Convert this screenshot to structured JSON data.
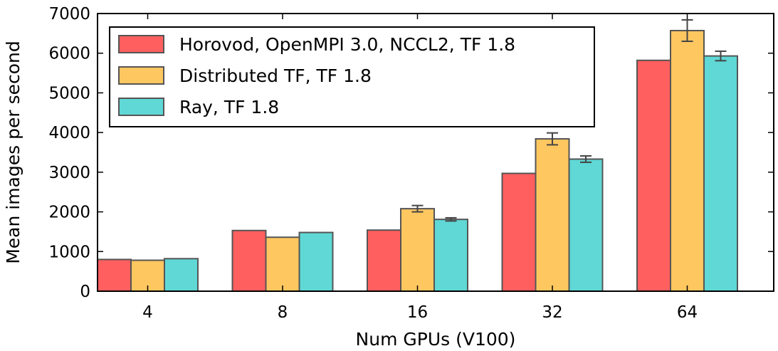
{
  "chart_data": {
    "type": "bar",
    "xlabel": "Num GPUs (V100)",
    "ylabel": "Mean images per second",
    "categories": [
      "4",
      "8",
      "16",
      "32",
      "64"
    ],
    "ylim": [
      0,
      7000
    ],
    "yticks": [
      0,
      1000,
      2000,
      3000,
      4000,
      5000,
      6000,
      7000
    ],
    "grid": false,
    "legend_position": "top-left",
    "series": [
      {
        "name": "Horovod, OpenMPI 3.0, NCCL2, TF 1.8",
        "color": "#ff5f5f",
        "values": [
          800,
          1530,
          1540,
          2970,
          5820
        ],
        "errors": [
          0,
          0,
          0,
          0,
          0
        ]
      },
      {
        "name": "Distributed TF, TF 1.8",
        "color": "#ffc760",
        "values": [
          780,
          1360,
          2080,
          3840,
          6570
        ],
        "errors": [
          0,
          0,
          80,
          150,
          270
        ]
      },
      {
        "name": "Ray, TF 1.8",
        "color": "#5fd8d6",
        "values": [
          820,
          1480,
          1810,
          3330,
          5930
        ],
        "errors": [
          0,
          0,
          40,
          80,
          120
        ]
      }
    ]
  }
}
